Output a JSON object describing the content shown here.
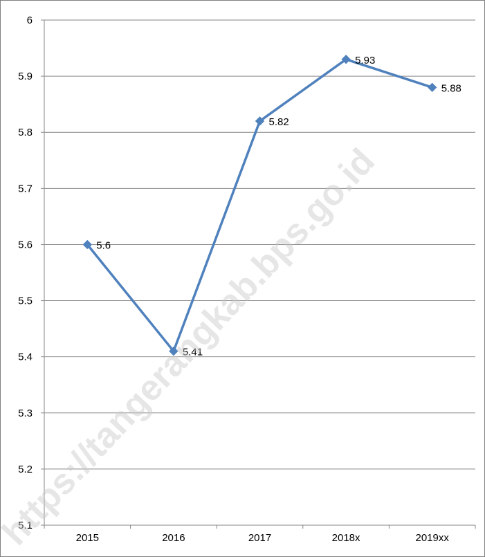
{
  "chart_data": {
    "type": "line",
    "categories": [
      "2015",
      "2016",
      "2017",
      "2018x",
      "2019xx"
    ],
    "series": [
      {
        "values": [
          5.6,
          5.41,
          5.82,
          5.93,
          5.88
        ],
        "data_labels": [
          "5.6",
          "5.41",
          "5.82",
          "5.93",
          "5.88"
        ],
        "color": "#4f81bd",
        "marker": "diamond"
      }
    ],
    "y_ticks": [
      "6",
      "5.9",
      "5.8",
      "5.7",
      "5.6",
      "5.5",
      "5.4",
      "5.3",
      "5.2",
      "5.1"
    ],
    "ylim": [
      5.1,
      6.0
    ],
    "grid": true,
    "gridline_color": "#868686",
    "legend": "none",
    "title": "",
    "xlabel": "",
    "ylabel": ""
  },
  "watermark": {
    "text": "https://tangerangkab.bps.go.id"
  }
}
